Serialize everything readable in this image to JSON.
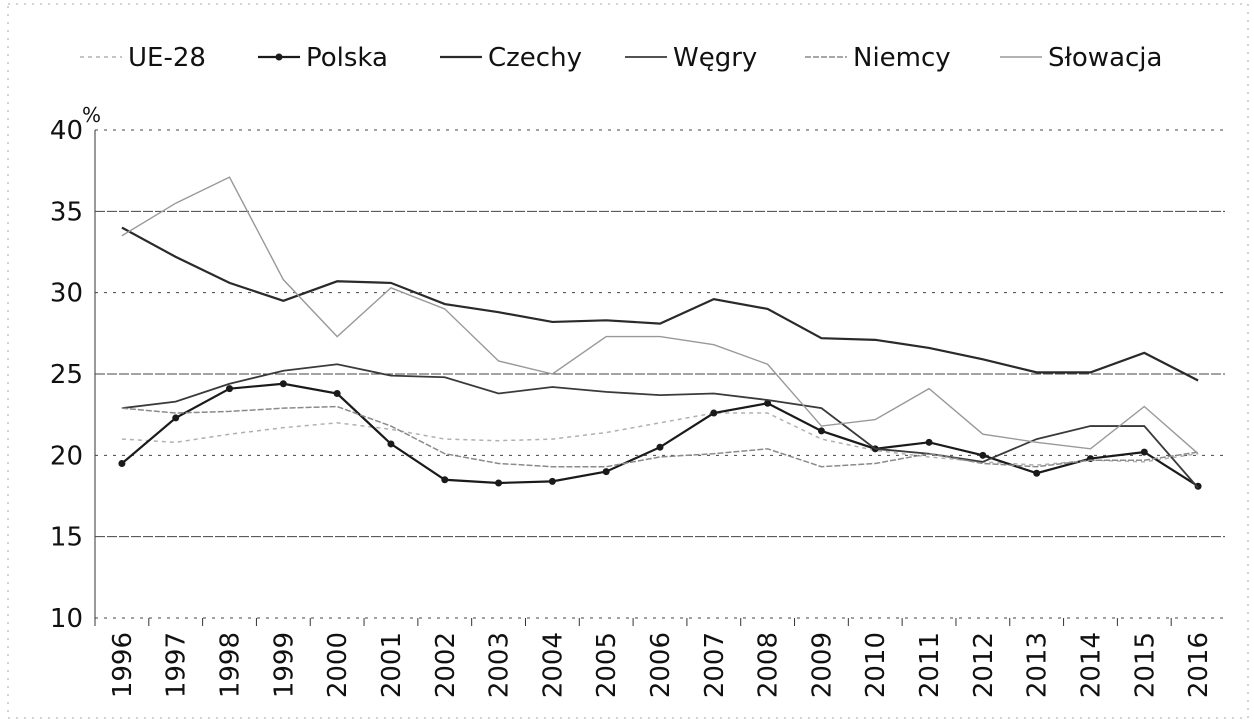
{
  "chart_data": {
    "type": "line",
    "y_unit": "%",
    "categories": [
      "1996",
      "1997",
      "1998",
      "1999",
      "2000",
      "2001",
      "2002",
      "2003",
      "2004",
      "2005",
      "2006",
      "2007",
      "2008",
      "2009",
      "2010",
      "2011",
      "2012",
      "2013",
      "2014",
      "2015",
      "2016"
    ],
    "series": [
      {
        "name": "UE-28",
        "color": "#b0b0b0",
        "dash": "4 4",
        "width": 1.5,
        "marker": false,
        "values": [
          21.0,
          20.8,
          21.3,
          21.7,
          22.0,
          21.6,
          21.0,
          20.9,
          21.0,
          21.4,
          22.0,
          22.6,
          22.6,
          21.0,
          20.3,
          19.9,
          19.6,
          19.4,
          19.7,
          19.6,
          20.1
        ]
      },
      {
        "name": "Polska",
        "color": "#1a1a1a",
        "dash": "",
        "width": 2.2,
        "marker": true,
        "values": [
          19.5,
          22.3,
          24.1,
          24.4,
          23.8,
          20.7,
          18.5,
          18.3,
          18.4,
          19.0,
          20.5,
          22.6,
          23.2,
          21.5,
          20.4,
          20.8,
          20.0,
          18.9,
          19.8,
          20.2,
          18.1
        ]
      },
      {
        "name": "Czechy",
        "color": "#2a2a2a",
        "dash": "",
        "width": 2.2,
        "marker": false,
        "values": [
          34.0,
          32.2,
          30.6,
          29.5,
          30.7,
          30.6,
          29.3,
          28.8,
          28.2,
          28.3,
          28.1,
          29.6,
          29.0,
          27.2,
          27.1,
          26.6,
          25.9,
          25.1,
          25.1,
          26.3,
          24.6
        ]
      },
      {
        "name": "Węgry",
        "color": "#3a3a3a",
        "dash": "",
        "width": 1.8,
        "marker": false,
        "values": [
          22.9,
          23.3,
          24.4,
          25.2,
          25.6,
          24.9,
          24.8,
          23.8,
          24.2,
          23.9,
          23.7,
          23.8,
          23.4,
          22.9,
          20.4,
          20.1,
          19.6,
          21.0,
          21.8,
          21.8,
          18.0
        ]
      },
      {
        "name": "Niemcy",
        "color": "#8a8a8a",
        "dash": "6 2",
        "width": 1.5,
        "marker": false,
        "values": [
          22.9,
          22.6,
          22.7,
          22.9,
          23.0,
          21.8,
          20.1,
          19.5,
          19.3,
          19.3,
          19.9,
          20.1,
          20.4,
          19.3,
          19.5,
          20.1,
          19.5,
          19.3,
          19.7,
          19.7,
          20.2
        ]
      },
      {
        "name": "Słowacja",
        "color": "#999999",
        "dash": "",
        "width": 1.4,
        "marker": false,
        "values": [
          33.5,
          35.5,
          37.1,
          30.8,
          27.3,
          30.3,
          29.0,
          25.8,
          25.0,
          27.3,
          27.3,
          26.8,
          25.6,
          21.8,
          22.2,
          24.1,
          21.3,
          20.8,
          20.4,
          23.0,
          20.1
        ]
      }
    ],
    "ylim": [
      10,
      40
    ],
    "yticks": [
      10,
      15,
      20,
      25,
      30,
      35,
      40
    ],
    "grid": true,
    "legend": "top"
  }
}
